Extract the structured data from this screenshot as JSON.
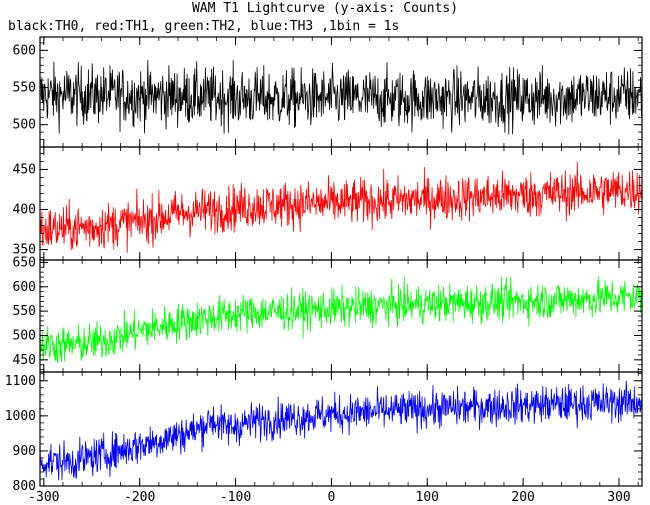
{
  "chart_data": {
    "type": "line",
    "title": "WAM T1 Lightcurve (y-axis: Counts)",
    "subtitle": "black:TH0, red:TH1, green:TH2, blue:TH3 ,1bin = 1s",
    "x_range": [
      -304,
      324
    ],
    "x_ticks": [
      -300,
      -200,
      -100,
      0,
      100,
      200,
      300
    ],
    "x_tick_labels": [
      "-300",
      "-200",
      "-100",
      "0",
      "100",
      "200",
      "300"
    ],
    "grid": false,
    "series": [
      {
        "name": "TH0",
        "color": "#000000",
        "ylim": [
          470,
          618
        ],
        "y_ticks": [
          500,
          550,
          600
        ],
        "y_tick_labels": [
          "500",
          "550",
          "600"
        ],
        "trend_x": [
          -304,
          -250,
          -150,
          -50,
          50,
          150,
          250,
          324
        ],
        "trend_y": [
          540,
          540,
          538,
          535,
          535,
          535,
          537,
          540
        ],
        "noise_amplitude": 22
      },
      {
        "name": "TH1",
        "color": "#ff0000",
        "ylim": [
          337,
          478
        ],
        "y_ticks": [
          350,
          400,
          450
        ],
        "y_tick_labels": [
          "350",
          "400",
          "450"
        ],
        "trend_x": [
          -304,
          -250,
          -200,
          -160,
          -120,
          -80,
          0,
          100,
          200,
          324
        ],
        "trend_y": [
          375,
          378,
          385,
          395,
          400,
          405,
          408,
          413,
          418,
          425
        ],
        "noise_amplitude": 16
      },
      {
        "name": "TH2",
        "color": "#00ff00",
        "ylim": [
          425,
          655
        ],
        "y_ticks": [
          450,
          500,
          550,
          600,
          650
        ],
        "y_tick_labels": [
          "450",
          "500",
          "550",
          "600",
          "650"
        ],
        "trend_x": [
          -304,
          -270,
          -240,
          -200,
          -150,
          -100,
          0,
          100,
          200,
          324
        ],
        "trend_y": [
          480,
          480,
          488,
          510,
          530,
          545,
          555,
          565,
          570,
          580
        ],
        "noise_amplitude": 22
      },
      {
        "name": "TH3",
        "color": "#0000ff",
        "ylim": [
          800,
          1125
        ],
        "y_ticks": [
          800,
          900,
          1000,
          1100
        ],
        "y_tick_labels": [
          "800",
          "900",
          "1000",
          "1100"
        ],
        "trend_x": [
          -304,
          -270,
          -230,
          -180,
          -140,
          -125,
          -110,
          -80,
          0,
          100,
          200,
          324
        ],
        "trend_y": [
          870,
          870,
          895,
          930,
          960,
          990,
          965,
          985,
          1005,
          1020,
          1030,
          1040
        ],
        "noise_amplitude": 30
      }
    ]
  }
}
